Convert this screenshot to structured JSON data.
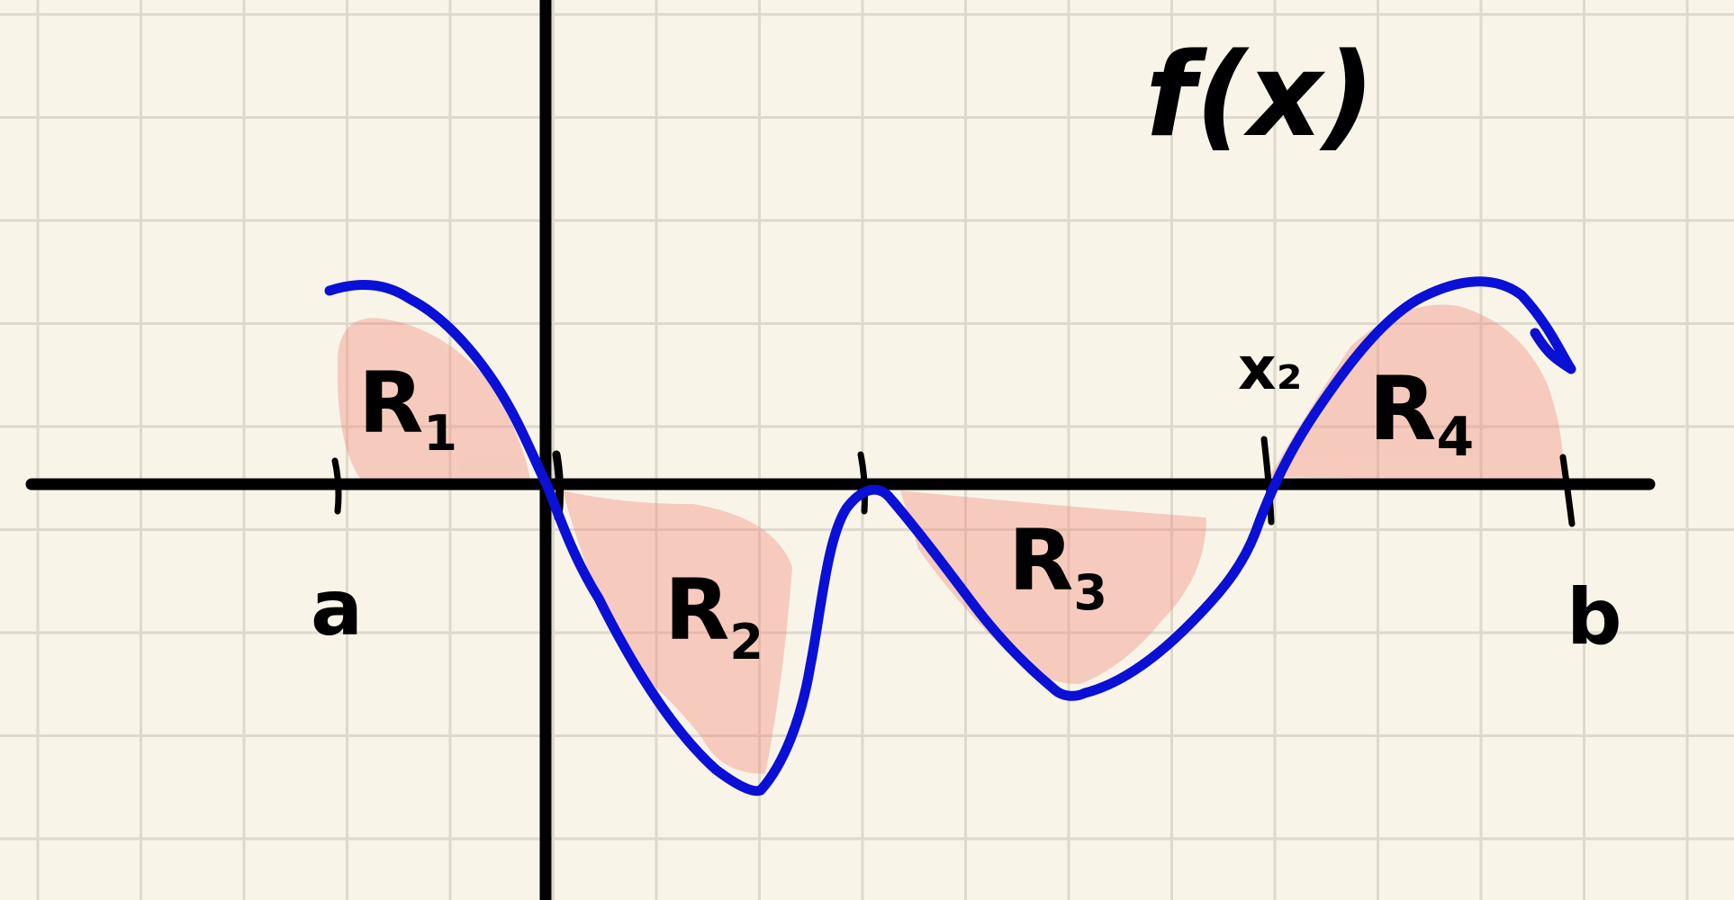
{
  "title": "f(x)",
  "colors": {
    "background": "#f8f5e8",
    "grid": "#ddd9cc",
    "axes": "#000000",
    "curve": "#0a10d6",
    "region_fill": "#f2877a"
  },
  "labels": {
    "a": "a",
    "b": "b",
    "x2": "x₂"
  },
  "regions": [
    {
      "id": "R1",
      "letter": "R",
      "sub": "1"
    },
    {
      "id": "R2",
      "letter": "R",
      "sub": "2"
    },
    {
      "id": "R3",
      "letter": "R",
      "sub": "3"
    },
    {
      "id": "R4",
      "letter": "R",
      "sub": "4"
    }
  ]
}
